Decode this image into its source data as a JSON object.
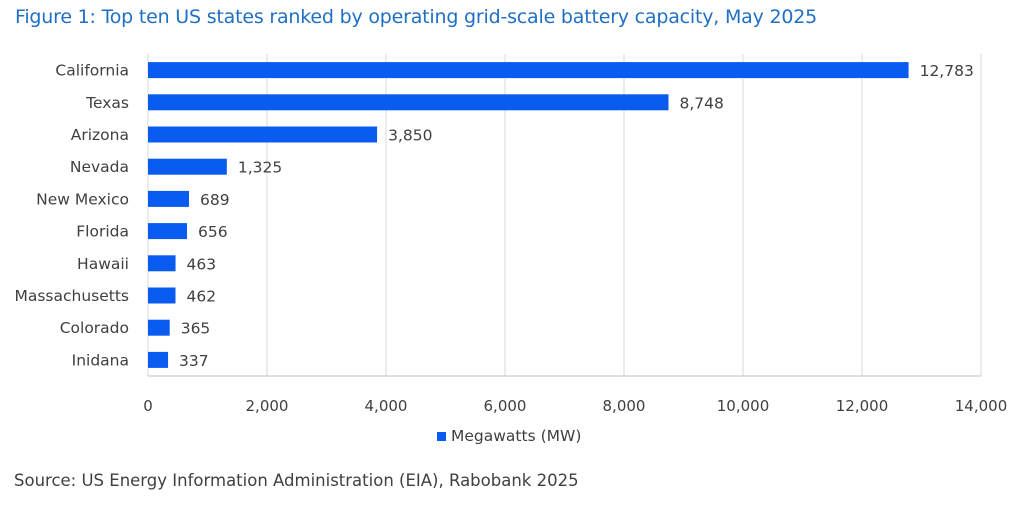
{
  "title": "Figure 1: Top ten US states ranked by operating grid-scale battery capacity, May 2025",
  "source": "Source: US Energy Information Administration (EIA), Rabobank 2025",
  "colors": {
    "bar": "#0a5cf0",
    "title": "#1f6fc5",
    "grid": "#d9d9d9",
    "text": "#404040"
  },
  "chart_data": {
    "type": "bar",
    "orientation": "horizontal",
    "title": "Figure 1: Top ten US states ranked by operating grid-scale battery capacity, May 2025",
    "xlabel": "",
    "ylabel": "",
    "xlim": [
      0,
      14000
    ],
    "x_ticks": [
      "0",
      "2,000",
      "4,000",
      "6,000",
      "8,000",
      "10,000",
      "12,000",
      "14,000"
    ],
    "grid": true,
    "legend_position": "bottom",
    "categories": [
      "California",
      "Texas",
      "Arizona",
      "Nevada",
      "New Mexico",
      "Florida",
      "Hawaii",
      "Massachusetts",
      "Colorado",
      "Inidana"
    ],
    "series": [
      {
        "name": "Megawatts (MW)",
        "values": [
          12783,
          8748,
          3850,
          1325,
          689,
          656,
          463,
          462,
          365,
          337
        ],
        "labels": [
          "12,783",
          "8,748",
          "3,850",
          "1,325",
          "689",
          "656",
          "463",
          "462",
          "365",
          "337"
        ]
      }
    ]
  }
}
